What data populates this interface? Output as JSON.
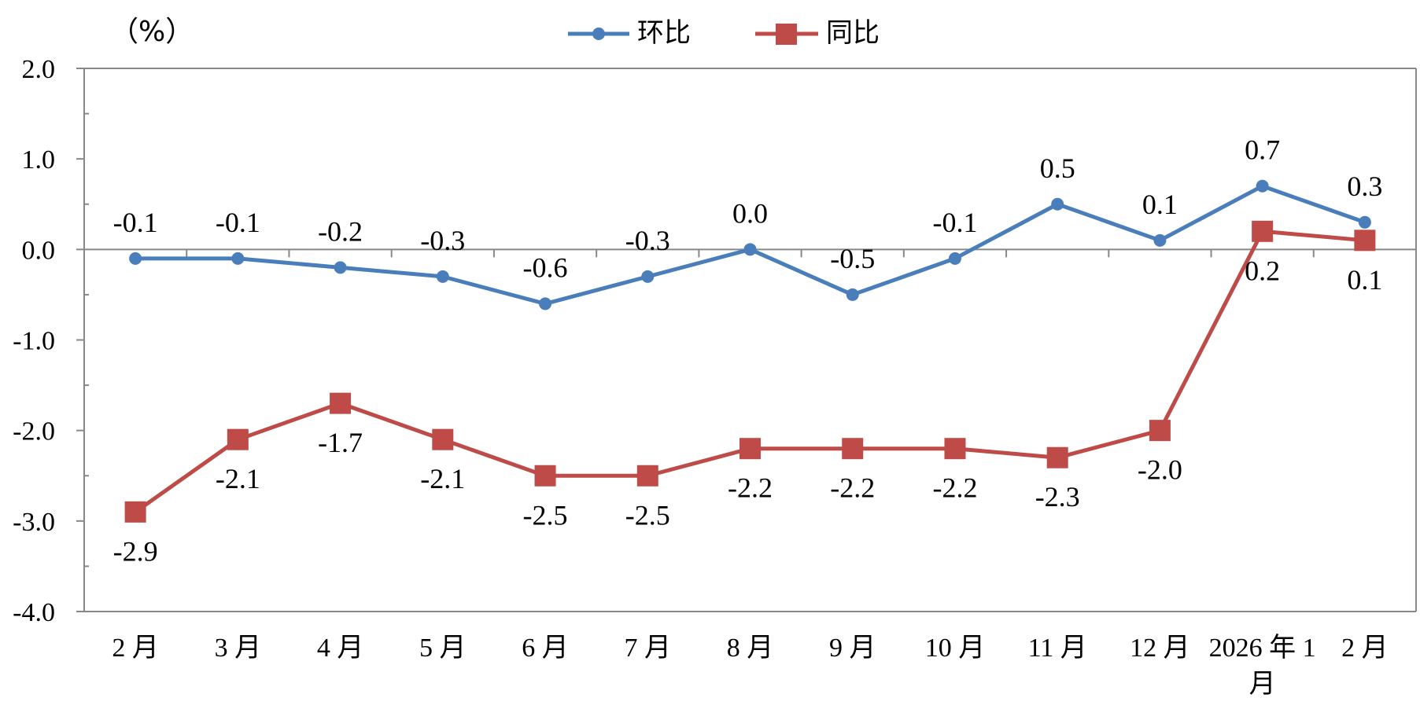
{
  "chart_data": {
    "type": "line",
    "unit_label": "（%）",
    "categories": [
      "2月",
      "3月",
      "4月",
      "5月",
      "6月",
      "7月",
      "8月",
      "9月",
      "10月",
      "11月",
      "12月",
      "2026年1月",
      "2月"
    ],
    "category_lines": [
      [
        "2 月"
      ],
      [
        "3 月"
      ],
      [
        "4 月"
      ],
      [
        "5 月"
      ],
      [
        "6 月"
      ],
      [
        "7 月"
      ],
      [
        "8 月"
      ],
      [
        "9 月"
      ],
      [
        "10 月"
      ],
      [
        "11 月"
      ],
      [
        "12 月"
      ],
      [
        "2026 年 1",
        "月"
      ],
      [
        "2 月"
      ]
    ],
    "ylim": [
      -4.0,
      2.0
    ],
    "yticks": [
      2.0,
      1.0,
      0.0,
      -1.0,
      -2.0,
      -3.0,
      -4.0
    ],
    "ytick_labels": [
      "2.0",
      "1.0",
      "0.0",
      "-1.0",
      "-2.0",
      "-3.0",
      "-4.0"
    ],
    "grid": false,
    "legend_position": "top-center",
    "series": [
      {
        "name": "环比",
        "color": "#4a7ebb",
        "marker": "circle",
        "values": [
          -0.1,
          -0.1,
          -0.2,
          -0.3,
          -0.6,
          -0.3,
          0.0,
          -0.5,
          -0.1,
          0.5,
          0.1,
          0.7,
          0.3
        ],
        "labels": [
          "-0.1",
          "-0.1",
          "-0.2",
          "-0.3",
          "-0.6",
          "-0.3",
          "0.0",
          "-0.5",
          "-0.1",
          "0.5",
          "0.1",
          "0.7",
          "0.3"
        ]
      },
      {
        "name": "同比",
        "color": "#be4b48",
        "marker": "square",
        "values": [
          -2.9,
          -2.1,
          -1.7,
          -2.1,
          -2.5,
          -2.5,
          -2.2,
          -2.2,
          -2.2,
          -2.3,
          -2.0,
          0.2,
          0.1
        ],
        "labels": [
          "-2.9",
          "-2.1",
          "-1.7",
          "-2.1",
          "-2.5",
          "-2.5",
          "-2.2",
          "-2.2",
          "-2.2",
          "-2.3",
          "-2.0",
          "0.2",
          "0.1"
        ]
      }
    ]
  }
}
